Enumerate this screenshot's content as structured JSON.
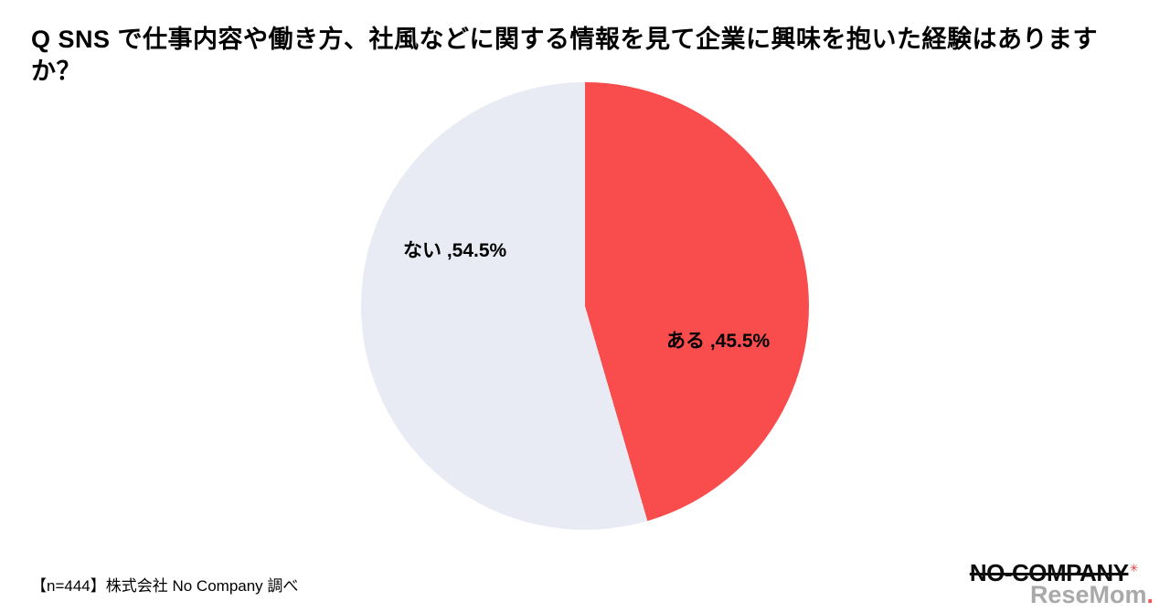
{
  "title": "Q SNS で仕事内容や働き方、社風などに関する情報を見て企業に興味を抱いた経験はありますか？",
  "chart_data": {
    "type": "pie",
    "labels": [
      "ある",
      "ない"
    ],
    "values": [
      45.5,
      54.5
    ],
    "display_labels": [
      "ある ,45.5%",
      "ない ,54.5%"
    ],
    "colors": [
      "#F84C4D",
      "#E9EBF4"
    ],
    "start_angle_deg": 0,
    "direction": "clockwise",
    "title": "Q SNS で仕事内容や働き方、社風などに関する情報を見て企業に興味を抱いた経験はありますか？",
    "legend_position": "none",
    "sample_note": "【n=444】株式会社 No Company 調べ"
  },
  "footer": {
    "note": "【n=444】株式会社 No Company 調べ"
  },
  "logos": {
    "no_company": "NO-COMPANY",
    "no_company_mark": "✳",
    "resemom": "ReseMom",
    "resemom_dot": "."
  }
}
